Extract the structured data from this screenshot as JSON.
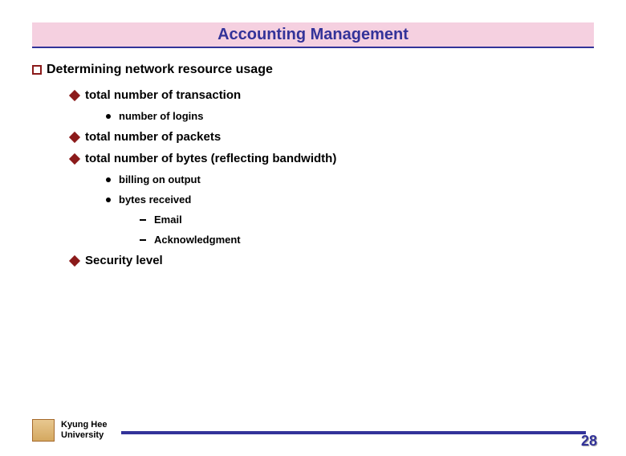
{
  "title": "Accounting Management",
  "colors": {
    "title_bg": "#f5d0e0",
    "title_text": "#333399",
    "title_underline": "#333399",
    "bullet_primary": "#8b1a1a",
    "text": "#000000",
    "footer_line": "#333399",
    "page_num": "#333399",
    "background": "#ffffff"
  },
  "fonts": {
    "title_size": 20,
    "l1_size": 16,
    "l2_size": 15,
    "l3_size": 13,
    "l4_size": 13,
    "footer_size": 11
  },
  "l1": {
    "text": "Determining network resource usage"
  },
  "l2_a": {
    "text": "total number of transaction"
  },
  "l3_a": {
    "text": "number of logins"
  },
  "l2_b": {
    "text": "total number of packets"
  },
  "l2_c": {
    "text": "total number of bytes (reflecting bandwidth)"
  },
  "l3_b": {
    "text": "billing on output"
  },
  "l3_c": {
    "text": "bytes received"
  },
  "l4_a": {
    "text": "Email"
  },
  "l4_b": {
    "text": "Acknowledgment"
  },
  "l2_d": {
    "text": "Security level"
  },
  "footer": {
    "line1": "Kyung Hee",
    "line2": "University"
  },
  "page_number": "28"
}
